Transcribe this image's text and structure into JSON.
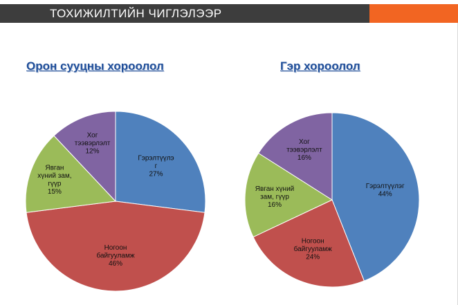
{
  "slide": {
    "header_title": "ТОХИЖИЛТИЙН ЧИГЛЭЛЭЭР",
    "header_color": "#3d3d3d",
    "accent_color": "#f26522"
  },
  "chart_data": [
    {
      "type": "pie",
      "title": "Орон сууцны хороолол",
      "start_angle_deg": 0,
      "slices": [
        {
          "label_lines": [
            "Гэрэлтүүлэ",
            "г"
          ],
          "value": 27,
          "value_label": "27%",
          "color": "#4f81bd"
        },
        {
          "label_lines": [
            "Ногоон",
            "байгууламж"
          ],
          "value": 46,
          "value_label": "46%",
          "color": "#c0504d"
        },
        {
          "label_lines": [
            "Явган",
            "хүний зам,",
            "гүүр"
          ],
          "value": 15,
          "value_label": "15%",
          "color": "#9bbb59"
        },
        {
          "label_lines": [
            "Хог",
            "тээвэрлэлт"
          ],
          "value": 12,
          "value_label": "12%",
          "color": "#8064a2"
        }
      ]
    },
    {
      "type": "pie",
      "title": "Гэр хороолол",
      "start_angle_deg": 0,
      "slices": [
        {
          "label_lines": [
            "Гэрэлтүүлэг"
          ],
          "value": 44,
          "value_label": "44%",
          "color": "#4f81bd"
        },
        {
          "label_lines": [
            "Ногоон",
            "байгууламж"
          ],
          "value": 24,
          "value_label": "24%",
          "color": "#c0504d"
        },
        {
          "label_lines": [
            "Явган хүний",
            "зам, гүүр"
          ],
          "value": 16,
          "value_label": "16%",
          "color": "#9bbb59"
        },
        {
          "label_lines": [
            "Хог",
            "тээвэрлэлт"
          ],
          "value": 16,
          "value_label": "16%",
          "color": "#8064a2"
        }
      ]
    }
  ]
}
